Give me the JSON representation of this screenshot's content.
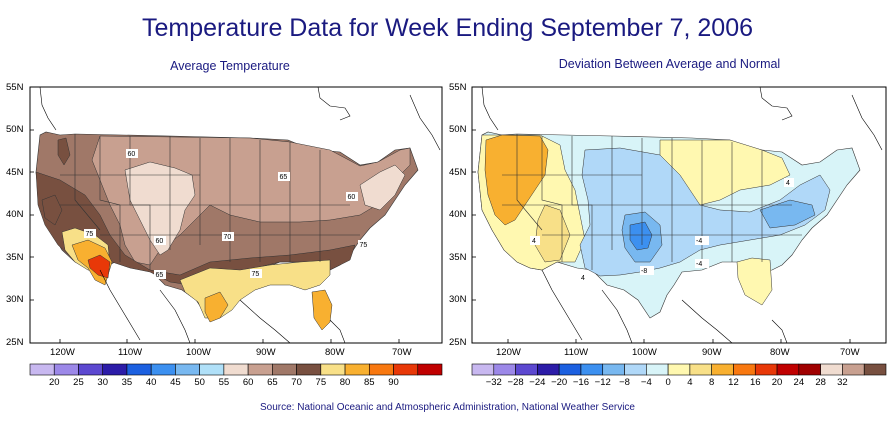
{
  "title": "Temperature Data for Week Ending September 7, 2006",
  "left_map": {
    "subtitle": "Average Temperature",
    "lat_labels": [
      "55N",
      "50N",
      "45N",
      "40N",
      "35N",
      "30N",
      "25N"
    ],
    "lon_labels": [
      "120W",
      "110W",
      "100W",
      "90W",
      "80W",
      "70W"
    ],
    "contour_labels": [
      "60",
      "65",
      "60",
      "60",
      "70",
      "75",
      "65",
      "75",
      "75"
    ],
    "legend": {
      "values": [
        "20",
        "25",
        "30",
        "35",
        "40",
        "45",
        "50",
        "55",
        "60",
        "65",
        "70",
        "75",
        "80",
        "85",
        "90"
      ],
      "colors": [
        "#c8b8f0",
        "#9c88e8",
        "#5c48d0",
        "#2c1ca8",
        "#1c60e0",
        "#3c90f0",
        "#78b8f0",
        "#b0e0f8",
        "#f0dcd0",
        "#c8a090",
        "#a07868",
        "#785040",
        "#f8e088",
        "#f8b030",
        "#f87810",
        "#e83808",
        "#c00000"
      ]
    }
  },
  "right_map": {
    "subtitle": "Deviation Between Average and Normal",
    "lat_labels": [
      "55N",
      "50N",
      "45N",
      "40N",
      "35N",
      "30N",
      "25N"
    ],
    "lon_labels": [
      "120W",
      "110W",
      "100W",
      "90W",
      "80W",
      "70W"
    ],
    "contour_labels": [
      "4",
      "4",
      "-4",
      "-8",
      "-4",
      "4"
    ],
    "legend": {
      "values": [
        "−32",
        "−28",
        "−24",
        "−20",
        "−16",
        "−12",
        "−8",
        "−4",
        "0",
        "4",
        "8",
        "12",
        "16",
        "20",
        "24",
        "28",
        "32"
      ],
      "colors": [
        "#c8b8f0",
        "#9c88e8",
        "#5c48d0",
        "#2c1ca8",
        "#1c60e0",
        "#3c90f0",
        "#78b8f0",
        "#b0d8f8",
        "#d8f4f8",
        "#fff8b0",
        "#f8e088",
        "#f8b030",
        "#f87810",
        "#e83808",
        "#c00000",
        "#a00000",
        "#f0dcd0",
        "#c8a090",
        "#785040"
      ]
    }
  },
  "source": "Source:  National Oceanic and Atmospheric Administration, National Weather Service"
}
